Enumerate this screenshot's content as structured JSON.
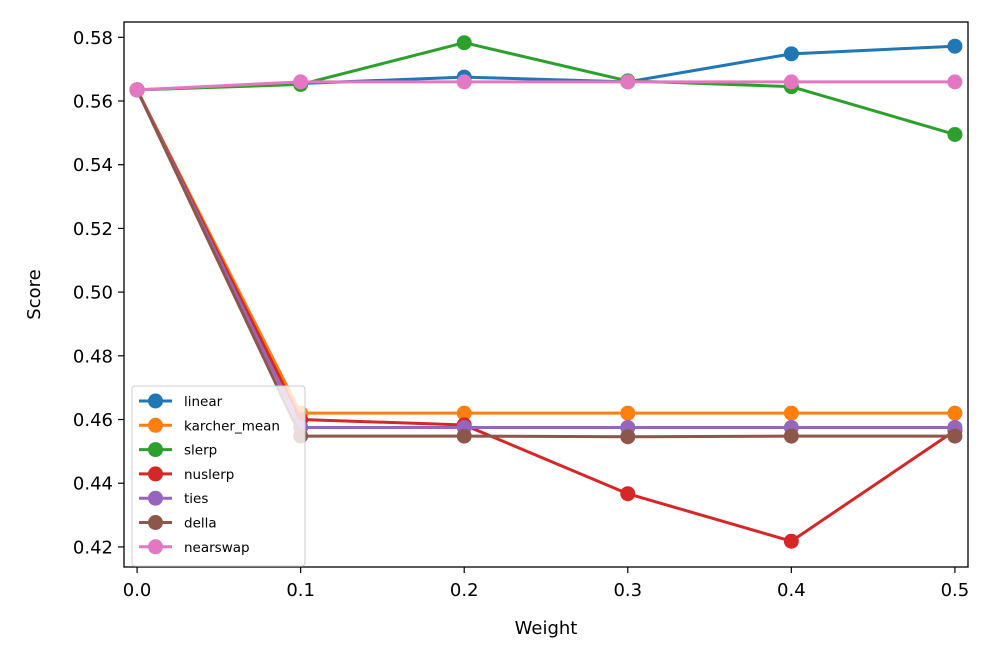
{
  "chart_data": {
    "type": "line",
    "title": "",
    "xlabel": "Weight",
    "ylabel": "Score",
    "x": [
      0.0,
      0.1,
      0.2,
      0.3,
      0.4,
      0.5
    ],
    "x_tick_labels": [
      "0.0",
      "0.1",
      "0.2",
      "0.3",
      "0.4",
      "0.5"
    ],
    "y_ticks": [
      0.42,
      0.44,
      0.46,
      0.48,
      0.5,
      0.52,
      0.54,
      0.56,
      0.58
    ],
    "y_tick_labels": [
      "0.42",
      "0.44",
      "0.46",
      "0.48",
      "0.50",
      "0.52",
      "0.54",
      "0.56",
      "0.58"
    ],
    "xlim": [
      -0.008,
      0.508
    ],
    "ylim": [
      0.4137,
      0.5848
    ],
    "grid": false,
    "legend_position": "lower-left",
    "series": [
      {
        "name": "linear",
        "color": "#1f77b4",
        "values": [
          0.5635,
          0.5655,
          0.5675,
          0.566,
          0.5748,
          0.5772
        ]
      },
      {
        "name": "karcher_mean",
        "color": "#ff7f0e",
        "values": [
          0.5635,
          0.462,
          0.462,
          0.462,
          0.462,
          0.462
        ]
      },
      {
        "name": "slerp",
        "color": "#2ca02c",
        "values": [
          0.5635,
          0.5652,
          0.5783,
          0.5663,
          0.5645,
          0.5495
        ]
      },
      {
        "name": "nuslerp",
        "color": "#d62728",
        "values": [
          0.5635,
          0.46,
          0.4583,
          0.4367,
          0.4218,
          0.4565
        ]
      },
      {
        "name": "ties",
        "color": "#9467bd",
        "values": [
          0.5635,
          0.4575,
          0.4575,
          0.4575,
          0.4575,
          0.4575
        ]
      },
      {
        "name": "della",
        "color": "#8c564b",
        "values": [
          0.5635,
          0.4548,
          0.4548,
          0.4546,
          0.4548,
          0.4548
        ]
      },
      {
        "name": "nearswap",
        "color": "#e377c2",
        "values": [
          0.5635,
          0.566,
          0.566,
          0.566,
          0.566,
          0.566
        ]
      }
    ]
  }
}
